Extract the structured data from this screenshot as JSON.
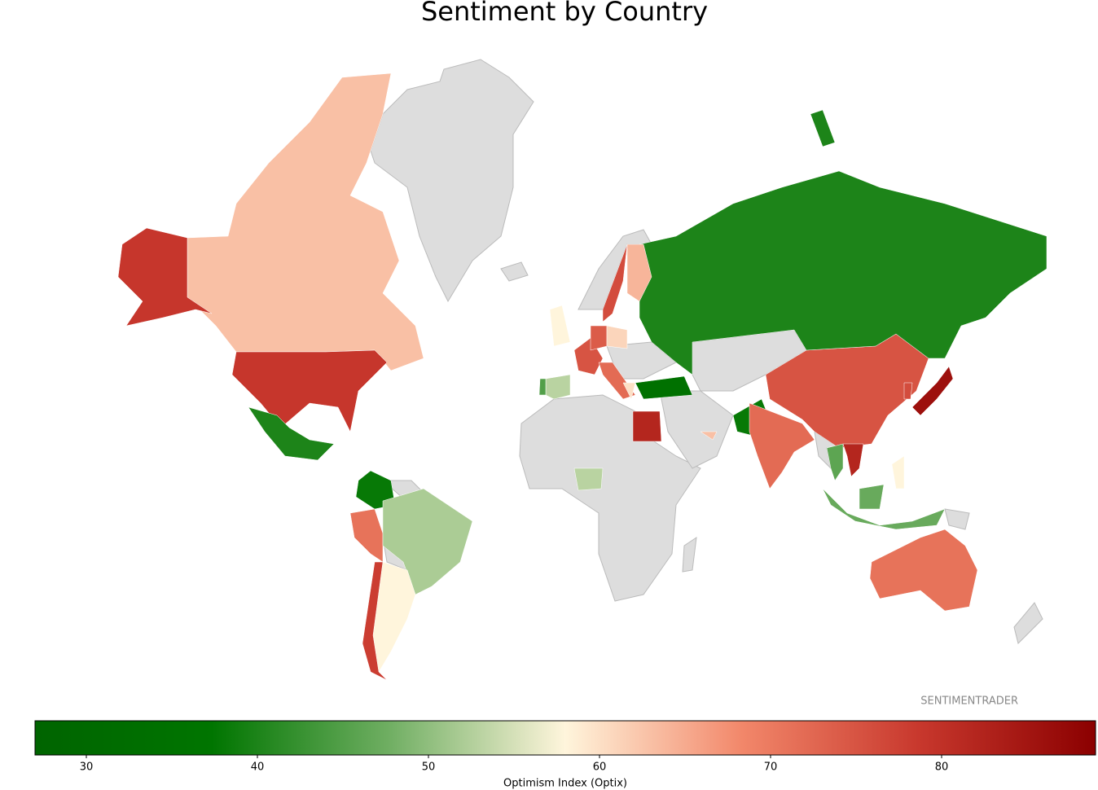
{
  "chart_data": {
    "type": "choropleth",
    "title": "Sentiment by Country",
    "values": [
      63,
      79,
      40,
      38,
      71,
      52,
      58,
      78,
      82,
      53,
      35,
      38,
      72,
      75,
      40,
      76,
      64,
      58,
      75,
      53,
      45,
      74,
      61,
      72,
      60,
      63,
      86,
      76,
      46,
      82,
      47,
      58,
      71
    ],
    "zlim": [
      27,
      89
    ],
    "zticks": [
      30,
      40,
      50,
      60,
      70,
      80
    ],
    "colorscale": [
      "#006400",
      "#007500",
      "#6fae62",
      "#fff5dc",
      "#f2876a",
      "#c8382d",
      "#8b0000"
    ],
    "missing_color": "#dddddd",
    "colorbar_label": "Optimism Index (Optix)",
    "watermark": "SENTIMENTRADER"
  }
}
